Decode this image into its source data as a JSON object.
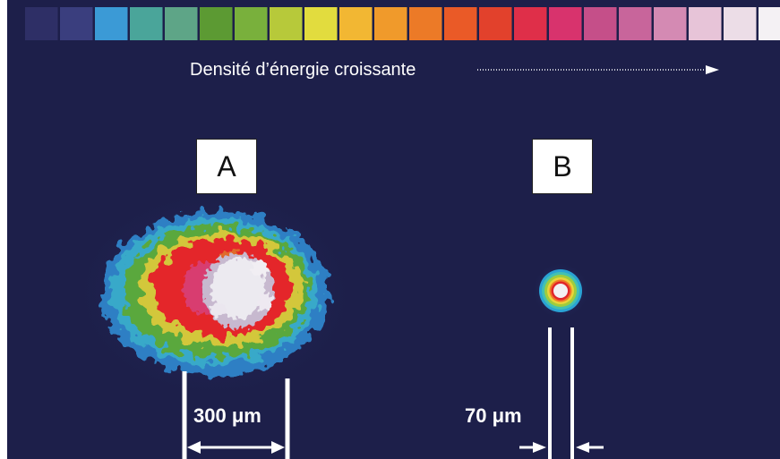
{
  "energy_scale": {
    "caption": "Densité d’énergie croissante",
    "colors": [
      "#2e2f66",
      "#3a3e7e",
      "#3b9ad6",
      "#4aa59a",
      "#5ea587",
      "#5c9a33",
      "#79b03c",
      "#b7c93a",
      "#e2dc3e",
      "#f2b733",
      "#f09a2b",
      "#ec7a27",
      "#ea5a27",
      "#e2412c",
      "#df2f49",
      "#d8336d",
      "#c54f89",
      "#c8659b",
      "#d48ab3",
      "#e7c4d8",
      "#ecdde7",
      "#f4f1f4"
    ]
  },
  "panels": {
    "a": {
      "label": "A",
      "dimension": "300 μm"
    },
    "b": {
      "label": "B",
      "dimension": "70 μm"
    }
  }
}
